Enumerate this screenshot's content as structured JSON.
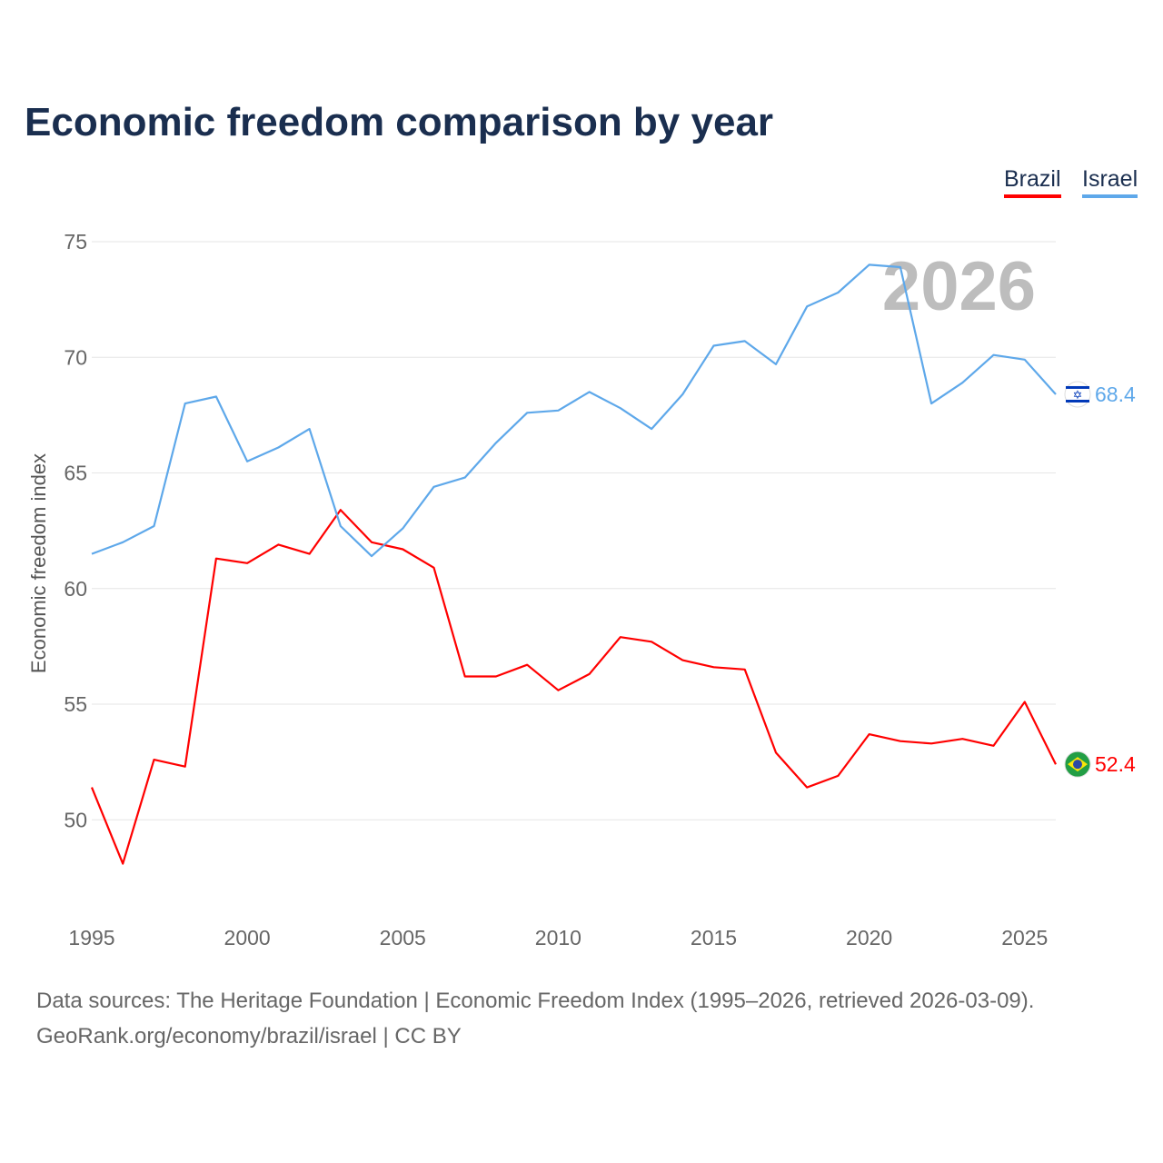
{
  "chart_data": {
    "type": "line",
    "title": "Economic freedom comparison by year",
    "xlabel": "",
    "ylabel": "Economic freedom index",
    "xlim": [
      1995,
      2026
    ],
    "ylim": [
      46,
      76
    ],
    "yticks": [
      50,
      55,
      60,
      65,
      70,
      75
    ],
    "xticks": [
      1995,
      2000,
      2005,
      2010,
      2015,
      2020,
      2025
    ],
    "grid": true,
    "legend_position": "top-right",
    "watermark_year": "2026",
    "x": [
      1995,
      1996,
      1997,
      1998,
      1999,
      2000,
      2001,
      2002,
      2003,
      2004,
      2005,
      2006,
      2007,
      2008,
      2009,
      2010,
      2011,
      2012,
      2013,
      2014,
      2015,
      2016,
      2017,
      2018,
      2019,
      2020,
      2021,
      2022,
      2023,
      2024,
      2025,
      2026
    ],
    "series": [
      {
        "name": "Brazil",
        "color": "#ff0000",
        "end_label": "52.4",
        "values": [
          51.4,
          48.1,
          52.6,
          52.3,
          61.3,
          61.1,
          61.9,
          61.5,
          63.4,
          62.0,
          61.7,
          60.9,
          56.2,
          56.2,
          56.7,
          55.6,
          56.3,
          57.9,
          57.7,
          56.9,
          56.6,
          56.5,
          52.9,
          51.4,
          51.9,
          53.7,
          53.4,
          53.3,
          53.5,
          53.2,
          55.1,
          52.4
        ]
      },
      {
        "name": "Israel",
        "color": "#5ea8ea",
        "end_label": "68.4",
        "values": [
          61.5,
          62.0,
          62.7,
          68.0,
          68.3,
          65.5,
          66.1,
          66.9,
          62.7,
          61.4,
          62.6,
          64.4,
          64.8,
          66.3,
          67.6,
          67.7,
          68.5,
          67.8,
          66.9,
          68.4,
          70.5,
          70.7,
          69.7,
          72.2,
          72.8,
          74.0,
          73.9,
          68.0,
          68.9,
          70.1,
          69.9,
          68.4
        ]
      }
    ]
  },
  "footer": {
    "line1": "Data sources: The Heritage Foundation | Economic Freedom Index (1995–2026, retrieved 2026-03-09).",
    "line2": "GeoRank.org/economy/brazil/israel | CC BY"
  }
}
